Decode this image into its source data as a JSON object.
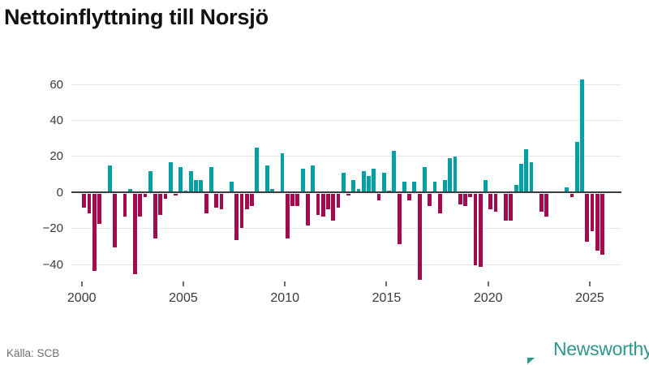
{
  "title": "Nettoinflyttning till Norsjö",
  "source": {
    "label": "Källa: SCB"
  },
  "branding": {
    "name": "Newsworthy",
    "color": "#2f968c",
    "icon": "speech-bubble-bar-chart"
  },
  "chart_data": {
    "type": "bar",
    "title": "Nettoinflyttning till Norsjö",
    "frequency": "quarterly",
    "x_start": {
      "year": 2000,
      "quarter": 1
    },
    "x_end": {
      "year": 2025,
      "quarter": 3
    },
    "series": [
      {
        "name": "Nettoinflyttning",
        "values": [
          -8,
          -11,
          -43,
          -17,
          0,
          15,
          -30,
          0,
          -13,
          2,
          -45,
          -13,
          -2,
          12,
          -25,
          -12,
          -3,
          17,
          -1,
          14,
          1,
          12,
          7,
          7,
          -11,
          14,
          -8,
          -9,
          0,
          6,
          -26,
          -19,
          -9,
          -7,
          25,
          0,
          15,
          2,
          0,
          22,
          -25,
          -7,
          -7,
          13,
          -18,
          15,
          -12,
          -13,
          -9,
          -15,
          -8,
          11,
          -1,
          7,
          2,
          12,
          9,
          13,
          -4,
          11,
          1,
          23,
          -28,
          6,
          -4,
          6,
          -48,
          14,
          -7,
          6,
          -11,
          7,
          19,
          20,
          -6,
          -7,
          -2,
          -40,
          -41,
          7,
          -9,
          -10,
          0,
          -15,
          -15,
          4,
          16,
          24,
          17,
          0,
          -10,
          -13,
          0,
          0,
          0,
          3,
          -2,
          28,
          63,
          -27,
          -21,
          -32,
          -34
        ]
      }
    ],
    "x_ticks": [
      2000,
      2005,
      2010,
      2015,
      2020,
      2025
    ],
    "y_ticks": [
      60,
      40,
      20,
      0,
      -20,
      -40
    ],
    "ylim": [
      -50,
      65
    ],
    "grid": "horizontal",
    "legend": "none",
    "colors": {
      "positive": "#00a1a4",
      "negative": "#a30a4f"
    }
  }
}
